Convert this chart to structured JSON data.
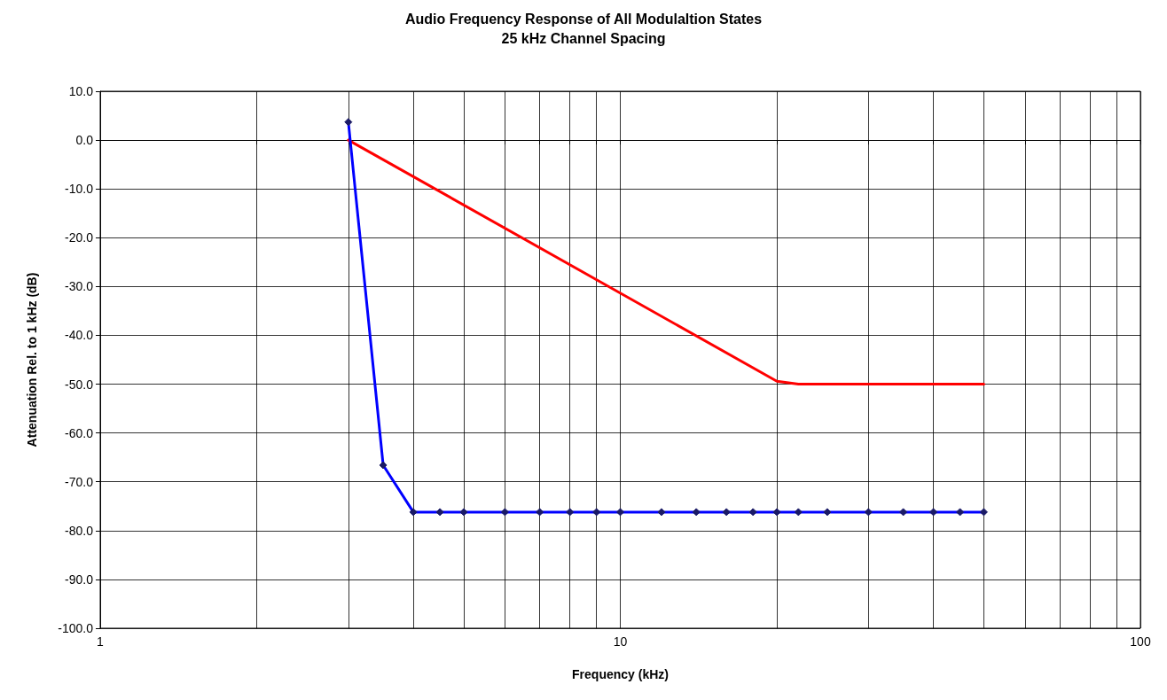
{
  "chart_data": {
    "type": "line",
    "title": "Audio Frequency Response of All Modulaltion States",
    "subtitle": "25 kHz Channel Spacing",
    "xlabel": "Frequency (kHz)",
    "ylabel": "Attenuation Rel. to 1 kHz (dB)",
    "log": "x",
    "grid": true,
    "xlim": [
      1,
      100
    ],
    "xticks": [
      1,
      {
        "value": 2,
        "label": null
      },
      {
        "value": 3,
        "label": null
      },
      {
        "value": 4,
        "label": null
      },
      {
        "value": 5,
        "label": null
      },
      {
        "value": 6,
        "label": null
      },
      {
        "value": 7,
        "label": null
      },
      {
        "value": 8,
        "label": null
      },
      {
        "value": 9,
        "label": null
      },
      10,
      {
        "value": 20,
        "label": null
      },
      {
        "value": 30,
        "label": null
      },
      {
        "value": 40,
        "label": null
      },
      {
        "value": 50,
        "label": null
      },
      {
        "value": 60,
        "label": null
      },
      {
        "value": 70,
        "label": null
      },
      {
        "value": 80,
        "label": null
      },
      {
        "value": 90,
        "label": null
      },
      100
    ],
    "ylim": [
      -100,
      10
    ],
    "yticks": [
      {
        "value": 10,
        "label": "10.0"
      },
      {
        "value": 0,
        "label": "0.0"
      },
      {
        "value": -10,
        "label": "-10.0"
      },
      {
        "value": -20,
        "label": "-20.0"
      },
      {
        "value": -30,
        "label": "-30.0"
      },
      {
        "value": -40,
        "label": "-40.0"
      },
      {
        "value": -50,
        "label": "-50.0"
      },
      {
        "value": -60,
        "label": "-60.0"
      },
      {
        "value": -70,
        "label": "-70.0"
      },
      {
        "value": -80,
        "label": "-80.0"
      },
      {
        "value": -90,
        "label": "-90.0"
      },
      {
        "value": -100,
        "label": "-100.0"
      }
    ],
    "series": [
      {
        "color": "#ff0000",
        "marker": "none",
        "x": [
          3,
          20,
          22,
          50
        ],
        "values": [
          0,
          -49.4,
          -50,
          -50
        ]
      },
      {
        "color": "#0000ff",
        "marker": "diamond",
        "x": [
          3,
          3.5,
          4,
          4.5,
          5,
          6,
          7,
          8,
          9,
          10,
          12,
          14,
          16,
          18,
          20,
          22,
          25,
          30,
          35,
          40,
          45,
          50
        ],
        "values": [
          3.7,
          -66.6,
          -76.2,
          -76.2,
          -76.2,
          -76.2,
          -76.2,
          -76.2,
          -76.2,
          -76.2,
          -76.2,
          -76.2,
          -76.2,
          -76.2,
          -76.2,
          -76.2,
          -76.2,
          -76.2,
          -76.2,
          -76.2,
          -76.2,
          -76.2
        ]
      }
    ]
  }
}
